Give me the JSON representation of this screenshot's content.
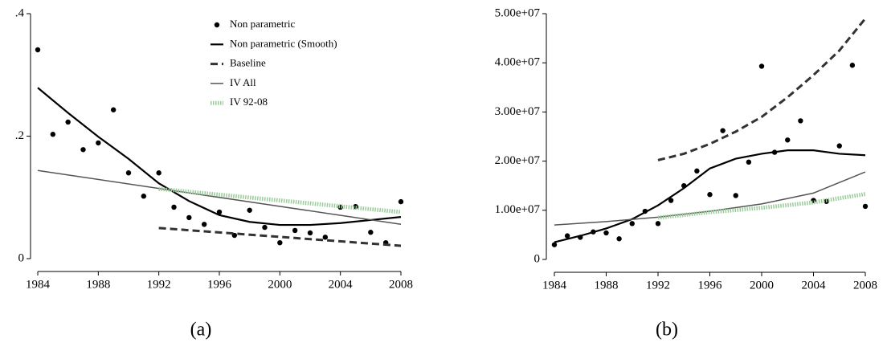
{
  "chart_data": [
    {
      "type": "line",
      "caption": "(a)",
      "legend": "upper right",
      "xlim": [
        1984,
        2008
      ],
      "xticks": [
        1984,
        1988,
        1992,
        1996,
        2000,
        2004,
        2008
      ],
      "ylim": [
        0,
        0.4
      ],
      "yticks": [
        0,
        {
          "value": 0.2,
          "label": ".2"
        },
        {
          "value": 0.4,
          "label": ".4"
        }
      ],
      "series": [
        {
          "name": "Non parametric",
          "style": "points",
          "color": "#000000",
          "x": [
            1984,
            1985,
            1986,
            1987,
            1988,
            1989,
            1990,
            1991,
            1992,
            1993,
            1994,
            1995,
            1996,
            1997,
            1998,
            1999,
            2000,
            2001,
            2002,
            2003,
            2004,
            2005,
            2006,
            2007,
            2008
          ],
          "values": [
            0.341,
            0.203,
            0.223,
            0.178,
            0.189,
            0.243,
            0.14,
            0.102,
            0.14,
            0.084,
            0.067,
            0.056,
            0.076,
            0.038,
            0.079,
            0.051,
            0.026,
            0.046,
            0.042,
            0.035,
            0.084,
            0.085,
            0.043,
            0.026,
            0.093
          ]
        },
        {
          "name": "Non parametric (Smooth)",
          "style": "solid",
          "color": "#000000",
          "x": [
            1984,
            1986,
            1988,
            1990,
            1992,
            1994,
            1996,
            1998,
            2000,
            2002,
            2004,
            2006,
            2008
          ],
          "values": [
            0.279,
            0.238,
            0.199,
            0.163,
            0.123,
            0.094,
            0.071,
            0.06,
            0.055,
            0.055,
            0.058,
            0.063,
            0.068
          ]
        },
        {
          "name": "Baseline",
          "style": "dashed",
          "color": "#333333",
          "x": [
            1992,
            2008
          ],
          "values": [
            0.05,
            0.021
          ]
        },
        {
          "name": "IV All",
          "style": "thin",
          "color": "#555555",
          "x": [
            1984,
            2008
          ],
          "values": [
            0.144,
            0.056
          ]
        },
        {
          "name": "IV 92-08",
          "style": "dotted",
          "color": "#99cc99",
          "x": [
            1992,
            2008
          ],
          "values": [
            0.114,
            0.076
          ]
        }
      ]
    },
    {
      "type": "line",
      "caption": "(b)",
      "xlim": [
        1984,
        2008
      ],
      "xticks": [
        1984,
        1988,
        1992,
        1996,
        2000,
        2004,
        2008
      ],
      "ylim": [
        0,
        50000000
      ],
      "yticks": [
        0,
        {
          "value": 10000000,
          "label": "1.00e+07"
        },
        {
          "value": 20000000,
          "label": "2.00e+07"
        },
        {
          "value": 30000000,
          "label": "3.00e+07"
        },
        {
          "value": 40000000,
          "label": "4.00e+07"
        },
        {
          "value": 50000000,
          "label": "5.00e+07"
        }
      ],
      "series": [
        {
          "style": "points",
          "color": "#000000",
          "x": [
            1984,
            1985,
            1986,
            1987,
            1988,
            1989,
            1990,
            1991,
            1992,
            1993,
            1994,
            1995,
            1996,
            1997,
            1998,
            1999,
            2000,
            2001,
            2002,
            2003,
            2004,
            2005,
            2006,
            2007,
            2008
          ],
          "values": [
            3000000,
            4800000,
            4500000,
            5600000,
            5400000,
            4200000,
            7300000,
            9800000,
            7300000,
            12000000,
            15000000,
            18000000,
            13200000,
            26200000,
            13000000,
            19800000,
            39300000,
            21800000,
            24300000,
            28200000,
            12000000,
            11800000,
            23100000,
            39500000,
            10800000
          ]
        },
        {
          "style": "solid",
          "color": "#000000",
          "x": [
            1984,
            1986,
            1988,
            1990,
            1992,
            1994,
            1996,
            1998,
            2000,
            2002,
            2004,
            2006,
            2008
          ],
          "values": [
            3500000,
            4800000,
            6300000,
            8200000,
            11000000,
            14500000,
            18500000,
            20500000,
            21500000,
            22200000,
            22200000,
            21500000,
            21200000
          ]
        },
        {
          "style": "dashed",
          "color": "#333333",
          "x": [
            1992,
            1994,
            1996,
            1998,
            2000,
            2002,
            2004,
            2006,
            2008
          ],
          "values": [
            20200000,
            21500000,
            23500000,
            26000000,
            29000000,
            33000000,
            37500000,
            42500000,
            49000000
          ]
        },
        {
          "style": "thin",
          "color": "#555555",
          "x": [
            1984,
            1988,
            1992,
            1996,
            2000,
            2004,
            2008
          ],
          "values": [
            7000000,
            7700000,
            8600000,
            9800000,
            11300000,
            13500000,
            17800000
          ]
        },
        {
          "style": "dotted",
          "color": "#99cc99",
          "x": [
            1992,
            1996,
            2000,
            2004,
            2008
          ],
          "values": [
            8500000,
            9600000,
            10500000,
            11600000,
            13300000
          ]
        }
      ]
    }
  ]
}
